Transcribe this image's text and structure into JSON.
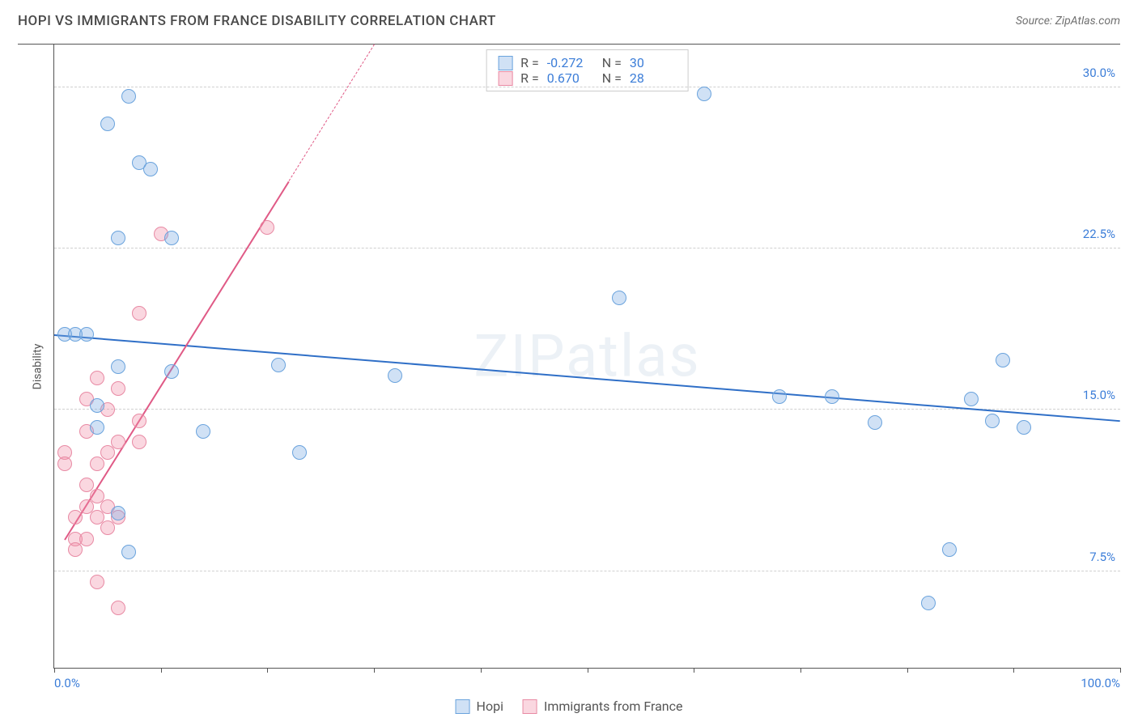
{
  "title": "HOPI VS IMMIGRANTS FROM FRANCE DISABILITY CORRELATION CHART",
  "source": "Source: ZipAtlas.com",
  "watermark": "ZIPatlas",
  "yaxis_label": "Disability",
  "chart": {
    "type": "scatter",
    "background_color": "#ffffff",
    "grid_color": "#d0d0d0",
    "xlim": [
      0,
      100
    ],
    "ylim": [
      3,
      32
    ],
    "xticks": [
      0,
      10,
      20,
      30,
      40,
      50,
      60,
      70,
      80,
      90,
      100
    ],
    "xtick_labels": {
      "0": "0.0%",
      "100": "100.0%"
    },
    "yticks": [
      7.5,
      15.0,
      22.5,
      30.0
    ],
    "ytick_labels": [
      "7.5%",
      "15.0%",
      "22.5%",
      "30.0%"
    ],
    "marker_radius": 9,
    "marker_stroke_width": 1.5,
    "trend_line_width": 2.5
  },
  "series": {
    "hopi": {
      "label": "Hopi",
      "fill_color": "rgba(120,170,225,0.35)",
      "stroke_color": "#6aa3dd",
      "line_color": "#2f6fc7",
      "R": "-0.272",
      "N": "30",
      "trend": {
        "x1": 0,
        "y1": 18.5,
        "x2": 100,
        "y2": 14.5
      },
      "points": [
        [
          1,
          18.5
        ],
        [
          2,
          18.5
        ],
        [
          3,
          18.5
        ],
        [
          4,
          15.2
        ],
        [
          4,
          14.2
        ],
        [
          5,
          28.3
        ],
        [
          6,
          23.0
        ],
        [
          6,
          17.0
        ],
        [
          6,
          10.2
        ],
        [
          7,
          29.6
        ],
        [
          7,
          8.4
        ],
        [
          8,
          26.5
        ],
        [
          9,
          26.2
        ],
        [
          11,
          23.0
        ],
        [
          11,
          16.8
        ],
        [
          14,
          14.0
        ],
        [
          21,
          17.1
        ],
        [
          23,
          13.0
        ],
        [
          32,
          16.6
        ],
        [
          53,
          20.2
        ],
        [
          61,
          29.7
        ],
        [
          68,
          15.6
        ],
        [
          73,
          15.6
        ],
        [
          77,
          14.4
        ],
        [
          82,
          6.0
        ],
        [
          84,
          8.5
        ],
        [
          86,
          15.5
        ],
        [
          88,
          14.5
        ],
        [
          89,
          17.3
        ],
        [
          91,
          14.2
        ]
      ]
    },
    "france": {
      "label": "Immigrants from France",
      "fill_color": "rgba(240,140,165,0.35)",
      "stroke_color": "#e88aa4",
      "line_color": "#e05a86",
      "R": "0.670",
      "N": "28",
      "trend": {
        "x1": 1,
        "y1": 9.0,
        "x2": 30,
        "y2": 32.0
      },
      "trend_dash_after_x": 22,
      "points": [
        [
          1,
          13.0
        ],
        [
          1,
          12.5
        ],
        [
          2,
          10.0
        ],
        [
          2,
          9.0
        ],
        [
          2,
          8.5
        ],
        [
          3,
          15.5
        ],
        [
          3,
          14.0
        ],
        [
          3,
          11.5
        ],
        [
          3,
          10.5
        ],
        [
          3,
          9.0
        ],
        [
          4,
          16.5
        ],
        [
          4,
          12.5
        ],
        [
          4,
          11.0
        ],
        [
          4,
          10.0
        ],
        [
          4,
          7.0
        ],
        [
          5,
          15.0
        ],
        [
          5,
          13.0
        ],
        [
          5,
          10.5
        ],
        [
          5,
          9.5
        ],
        [
          6,
          16.0
        ],
        [
          6,
          13.5
        ],
        [
          6,
          10.0
        ],
        [
          6,
          5.8
        ],
        [
          8,
          19.5
        ],
        [
          8,
          14.5
        ],
        [
          8,
          13.5
        ],
        [
          10,
          23.2
        ],
        [
          20,
          23.5
        ]
      ]
    }
  },
  "legend_top": {
    "r_label": "R =",
    "n_label": "N ="
  }
}
